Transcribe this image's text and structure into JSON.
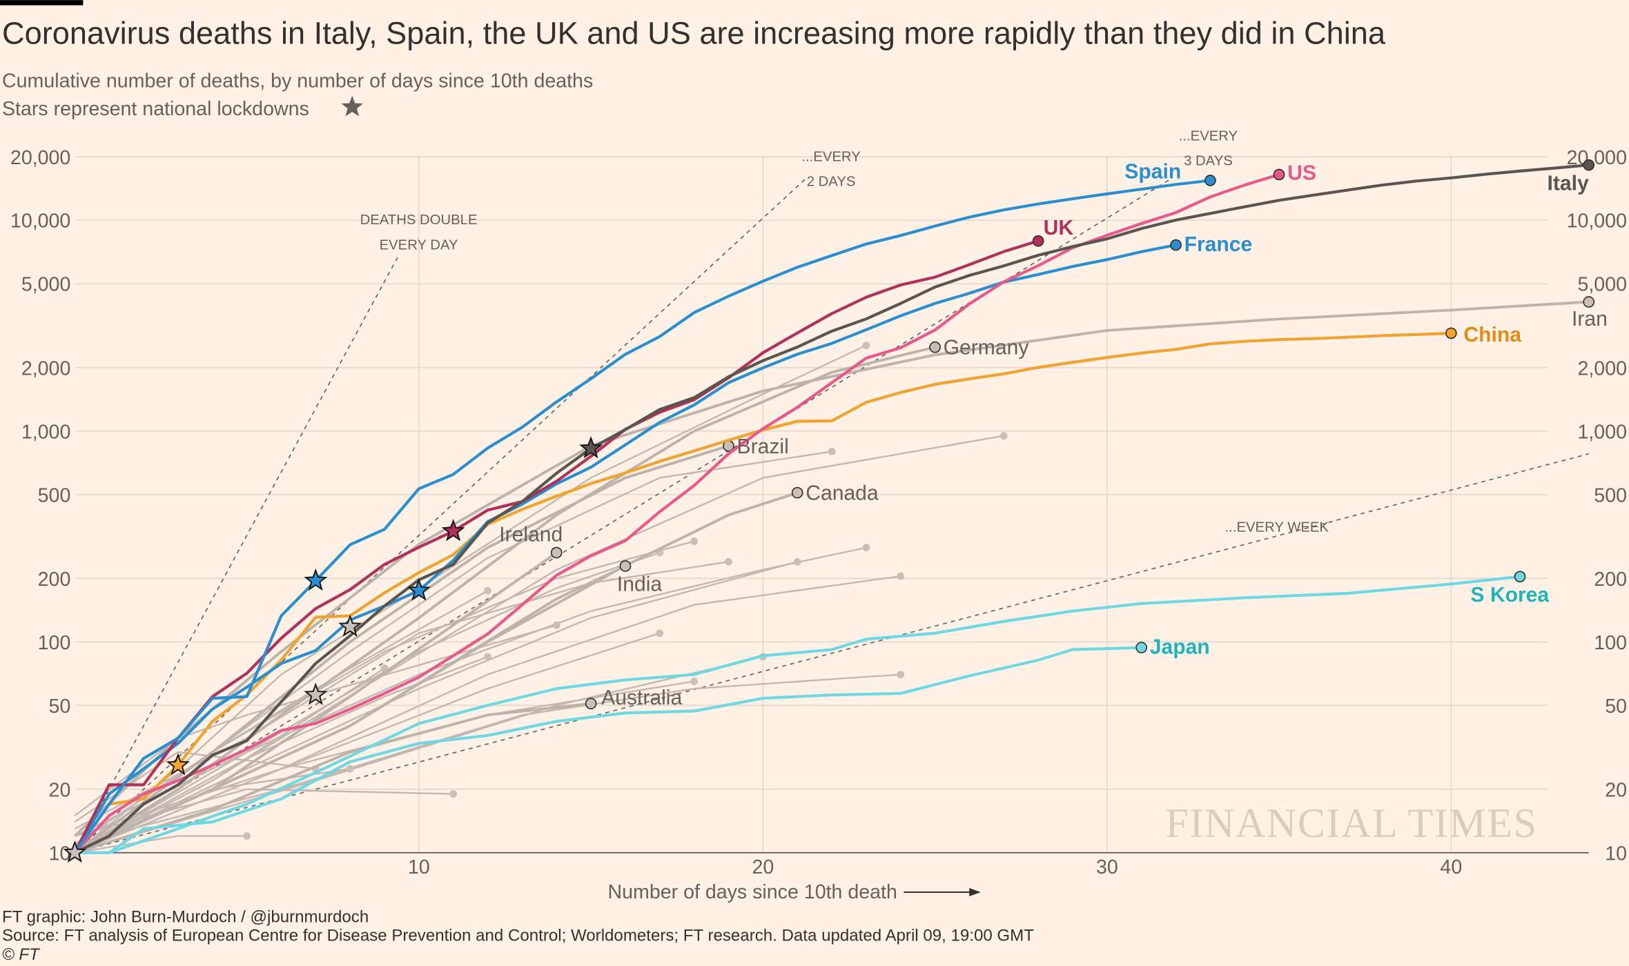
{
  "header": {
    "title": "Coronavirus deaths in Italy, Spain, the UK and US are increasing more rapidly than they did in China",
    "subtitle": "Cumulative number of deaths, by number of days since 10th deaths",
    "subtitle2": "Stars represent national lockdowns",
    "star_icon": "star-icon"
  },
  "footer": {
    "credit": "FT graphic: John Burn-Murdoch / @jburnmurdoch",
    "source": "Source: FT analysis of European Centre for Disease Prevention and Control; Worldometers; FT research. Data updated April 09, 19:00 GMT",
    "copyright": "© FT",
    "logo": "FINANCIAL TIMES"
  },
  "chart_data": {
    "type": "line",
    "title": "Coronavirus deaths in Italy, Spain, the UK and US are increasing more rapidly than they did in China",
    "xlabel": "Number of days since 10th death",
    "ylabel": "",
    "xlim": [
      0,
      44
    ],
    "ylim": [
      10,
      20000
    ],
    "yscale": "log",
    "grid": true,
    "x_ticks": [
      "10",
      "20",
      "30",
      "40"
    ],
    "x_tick_values": [
      10,
      20,
      30,
      40
    ],
    "y_ticks": [
      "20,000",
      "10,000",
      "5,000",
      "2,000",
      "1,000",
      "500",
      "200",
      "100",
      "50",
      "20",
      "10"
    ],
    "y_tick_values": [
      20000,
      10000,
      5000,
      2000,
      1000,
      500,
      200,
      100,
      50,
      20,
      10
    ],
    "colors": {
      "background": "#fff1e5",
      "grid": "#e7dbd0",
      "Spain": "#2a8fd1",
      "France": "#2a8fd1",
      "UK": "#b1315a",
      "US": "#e9588a",
      "Italy": "#5b5551",
      "China": "#f0a32f",
      "asia_cyan": "#6fd8e2",
      "other": "#c2b8b1"
    },
    "reference_lines": [
      {
        "label": [
          "DEATHS DOUBLE",
          "EVERY DAY"
        ],
        "doubling_days": 1
      },
      {
        "label": [
          "...EVERY",
          "2 DAYS"
        ],
        "doubling_days": 2
      },
      {
        "label": [
          "...EVERY",
          "3 DAYS"
        ],
        "doubling_days": 3
      },
      {
        "label": [
          "...EVERY WEEK"
        ],
        "doubling_days": 7
      }
    ],
    "series": [
      {
        "name": "Italy",
        "color": "#5b5551",
        "label_color": "#5b5551",
        "values": [
          10,
          12,
          17,
          21,
          29,
          34,
          52,
          79,
          107,
          148,
          197,
          233,
          366,
          463,
          631,
          827,
          1016,
          1266,
          1441,
          1809,
          2158,
          2503,
          2978,
          3405,
          4032,
          4825,
          5476,
          6077,
          6820,
          7503,
          8165,
          9134,
          10023,
          10779,
          11591,
          12428,
          13155,
          13915,
          14681,
          15362,
          15887,
          16523,
          17127,
          17669,
          18279
        ],
        "lockdown_day": 15
      },
      {
        "name": "Spain",
        "color": "#2a8fd1",
        "label_color": "#2a8fd1",
        "values": [
          10,
          17,
          28,
          35,
          54,
          55,
          133,
          195,
          289,
          342,
          533,
          623,
          830,
          1043,
          1375,
          1772,
          2311,
          2808,
          3647,
          4365,
          5138,
          5982,
          6803,
          7716,
          8464,
          9387,
          10348,
          11198,
          11947,
          12641,
          13341,
          14045,
          14792,
          15447
        ],
        "lockdown_day": 7
      },
      {
        "name": "US",
        "color": "#e9588a",
        "label_color": "#e9588a",
        "values": [
          10,
          15,
          19,
          22,
          26,
          31,
          38,
          41,
          48,
          57,
          68,
          86,
          109,
          150,
          207,
          256,
          302,
          414,
          552,
          780,
          1027,
          1296,
          1695,
          2221,
          2484,
          3016,
          4008,
          5102,
          6095,
          7403,
          8487,
          9647,
          10871,
          12911,
          14695,
          16478
        ]
      },
      {
        "name": "UK",
        "color": "#b1315a",
        "label_color": "#b1315a",
        "values": [
          10,
          21,
          21,
          35,
          55,
          71,
          104,
          144,
          177,
          233,
          281,
          335,
          422,
          463,
          578,
          759,
          1019,
          1228,
          1408,
          1789,
          2352,
          2921,
          3605,
          4313,
          4934,
          5373,
          6159,
          7097,
          7978
        ],
        "lockdown_day": 11
      },
      {
        "name": "France",
        "color": "#2a8fd1",
        "label_color": "#2a8fd1",
        "values": [
          10,
          19,
          25,
          33,
          48,
          61,
          79,
          91,
          127,
          148,
          175,
          244,
          372,
          450,
          562,
          674,
          860,
          1100,
          1331,
          1696,
          1995,
          2314,
          2606,
          3024,
          3523,
          4032,
          4503,
          5091,
          5532,
          6035,
          6507,
          7091,
          7632
        ],
        "lockdown_day": 10
      },
      {
        "name": "China",
        "color": "#f0a32f",
        "label_color": "#e38d17",
        "values": [
          10,
          17,
          18,
          26,
          42,
          56,
          82,
          131,
          133,
          171,
          213,
          259,
          361,
          425,
          491,
          563,
          633,
          718,
          805,
          905,
          1012,
          1112,
          1117,
          1369,
          1523,
          1666,
          1770,
          1868,
          2004,
          2118,
          2236,
          2345,
          2442,
          2592,
          2663,
          2715,
          2744,
          2788,
          2835,
          2870,
          2912
        ],
        "lockdown_day": 3
      },
      {
        "name": "Iran",
        "color": "#bdb3ab",
        "label_color": "#66605c",
        "points": [
          [
            0,
            12
          ],
          [
            3,
            35
          ],
          [
            6,
            90
          ],
          [
            10,
            290
          ],
          [
            15,
            850
          ],
          [
            20,
            1550
          ],
          [
            25,
            2300
          ],
          [
            30,
            3000
          ],
          [
            35,
            3400
          ],
          [
            40,
            3750
          ],
          [
            44,
            4100
          ]
        ]
      },
      {
        "name": "Germany",
        "color": "#bdb3ab",
        "label_color": "#66605c",
        "points": [
          [
            0,
            10
          ],
          [
            3,
            20
          ],
          [
            6,
            45
          ],
          [
            10,
            130
          ],
          [
            14,
            400
          ],
          [
            18,
            1000
          ],
          [
            22,
            1900
          ],
          [
            25,
            2500
          ]
        ]
      },
      {
        "name": "Brazil",
        "color": "#bdb3ab",
        "label_color": "#66605c",
        "points": [
          [
            0,
            10
          ],
          [
            4,
            30
          ],
          [
            8,
            100
          ],
          [
            12,
            280
          ],
          [
            16,
            600
          ],
          [
            19,
            850
          ]
        ]
      },
      {
        "name": "Canada",
        "color": "#bdb3ab",
        "label_color": "#66605c",
        "points": [
          [
            0,
            10
          ],
          [
            4,
            20
          ],
          [
            8,
            40
          ],
          [
            12,
            100
          ],
          [
            16,
            230
          ],
          [
            19,
            400
          ],
          [
            21,
            510
          ]
        ]
      },
      {
        "name": "Ireland",
        "color": "#bdb3ab",
        "label_color": "#66605c",
        "points": [
          [
            0,
            10
          ],
          [
            4,
            20
          ],
          [
            8,
            55
          ],
          [
            11,
            120
          ],
          [
            14,
            265
          ]
        ]
      },
      {
        "name": "India",
        "color": "#bdb3ab",
        "label_color": "#66605c",
        "points": [
          [
            0,
            10
          ],
          [
            4,
            20
          ],
          [
            8,
            40
          ],
          [
            11,
            80
          ],
          [
            14,
            160
          ],
          [
            16,
            229
          ]
        ]
      },
      {
        "name": "Australia",
        "color": "#bdb3ab",
        "label_color": "#66605c",
        "points": [
          [
            0,
            10
          ],
          [
            4,
            16
          ],
          [
            8,
            30
          ],
          [
            12,
            45
          ],
          [
            15,
            51
          ]
        ]
      },
      {
        "name": "S Korea",
        "color": "#6fd8e2",
        "label_color": "#1fb3c0",
        "points": [
          [
            0,
            10
          ],
          [
            1,
            10
          ],
          [
            3,
            13
          ],
          [
            5,
            17
          ],
          [
            7,
            24
          ],
          [
            10,
            41
          ],
          [
            12,
            50
          ],
          [
            14,
            60
          ],
          [
            16,
            66
          ],
          [
            18,
            70
          ],
          [
            20,
            86
          ],
          [
            22,
            92
          ],
          [
            23,
            103
          ],
          [
            25,
            110
          ],
          [
            27,
            125
          ],
          [
            29,
            140
          ],
          [
            31,
            152
          ],
          [
            34,
            162
          ],
          [
            37,
            170
          ],
          [
            40,
            188
          ],
          [
            42,
            204
          ]
        ]
      },
      {
        "name": "Japan",
        "color": "#6fd8e2",
        "label_color": "#1fb3c0",
        "points": [
          [
            0,
            10
          ],
          [
            1,
            10
          ],
          [
            2,
            13
          ],
          [
            4,
            14
          ],
          [
            6,
            18
          ],
          [
            8,
            27
          ],
          [
            10,
            33
          ],
          [
            12,
            36
          ],
          [
            14,
            42
          ],
          [
            16,
            46
          ],
          [
            18,
            47
          ],
          [
            20,
            54
          ],
          [
            22,
            56
          ],
          [
            24,
            57
          ],
          [
            26,
            69
          ],
          [
            28,
            82
          ],
          [
            29,
            92
          ],
          [
            31,
            94
          ]
        ]
      }
    ],
    "other_series": [
      [
        [
          0,
          10
        ],
        [
          3,
          25
        ],
        [
          6,
          70
        ],
        [
          10,
          180
        ],
        [
          15,
          600
        ],
        [
          20,
          1500
        ],
        [
          23,
          2550
        ]
      ],
      [
        [
          0,
          11
        ],
        [
          4,
          30
        ],
        [
          8,
          90
        ],
        [
          12,
          250
        ],
        [
          17,
          600
        ],
        [
          22,
          800
        ]
      ],
      [
        [
          0,
          10
        ],
        [
          4,
          22
        ],
        [
          9,
          70
        ],
        [
          14,
          220
        ],
        [
          20,
          600
        ],
        [
          27,
          950
        ]
      ],
      [
        [
          0,
          12
        ],
        [
          5,
          30
        ],
        [
          10,
          70
        ],
        [
          15,
          140
        ],
        [
          20,
          220
        ],
        [
          23,
          280
        ]
      ],
      [
        [
          0,
          10
        ],
        [
          5,
          25
        ],
        [
          10,
          60
        ],
        [
          15,
          130
        ],
        [
          21,
          240
        ]
      ],
      [
        [
          0,
          10
        ],
        [
          6,
          25
        ],
        [
          12,
          70
        ],
        [
          18,
          150
        ],
        [
          24,
          205
        ]
      ],
      [
        [
          0,
          13
        ],
        [
          5,
          35
        ],
        [
          10,
          110
        ],
        [
          15,
          190
        ],
        [
          19,
          240
        ]
      ],
      [
        [
          0,
          11
        ],
        [
          4,
          30
        ],
        [
          9,
          90
        ],
        [
          14,
          200
        ],
        [
          18,
          300
        ]
      ],
      [
        [
          0,
          10
        ],
        [
          5,
          30
        ],
        [
          10,
          90
        ],
        [
          14,
          180
        ],
        [
          17,
          265
        ]
      ],
      [
        [
          0,
          10
        ],
        [
          6,
          25
        ],
        [
          12,
          60
        ],
        [
          17,
          110
        ]
      ],
      [
        [
          0,
          10
        ],
        [
          7,
          22
        ],
        [
          14,
          50
        ],
        [
          20,
          85
        ]
      ],
      [
        [
          0,
          12
        ],
        [
          6,
          25
        ],
        [
          12,
          45
        ],
        [
          18,
          65
        ]
      ],
      [
        [
          0,
          11
        ],
        [
          6,
          20
        ],
        [
          13,
          45
        ],
        [
          18,
          60
        ],
        [
          24,
          70
        ]
      ],
      [
        [
          0,
          10
        ],
        [
          5,
          28
        ],
        [
          9,
          55
        ],
        [
          12,
          85
        ]
      ],
      [
        [
          0,
          10
        ],
        [
          4,
          22
        ],
        [
          9,
          75
        ]
      ],
      [
        [
          0,
          10
        ],
        [
          4,
          30
        ],
        [
          8,
          75
        ],
        [
          12,
          175
        ]
      ],
      [
        [
          0,
          12
        ],
        [
          5,
          20
        ],
        [
          11,
          19
        ]
      ],
      [
        [
          0,
          10
        ],
        [
          3,
          12
        ],
        [
          5,
          12
        ]
      ],
      [
        [
          0,
          14
        ],
        [
          3,
          30
        ],
        [
          7,
          25
        ]
      ],
      [
        [
          0,
          10
        ],
        [
          4,
          20
        ],
        [
          8,
          25
        ]
      ],
      [
        [
          0,
          15
        ],
        [
          3,
          35
        ],
        [
          5,
          45
        ],
        [
          14,
          120
        ]
      ]
    ],
    "other_lockdowns": [
      [
        0,
        10
      ],
      [
        7,
        56
      ],
      [
        8,
        118
      ]
    ]
  }
}
